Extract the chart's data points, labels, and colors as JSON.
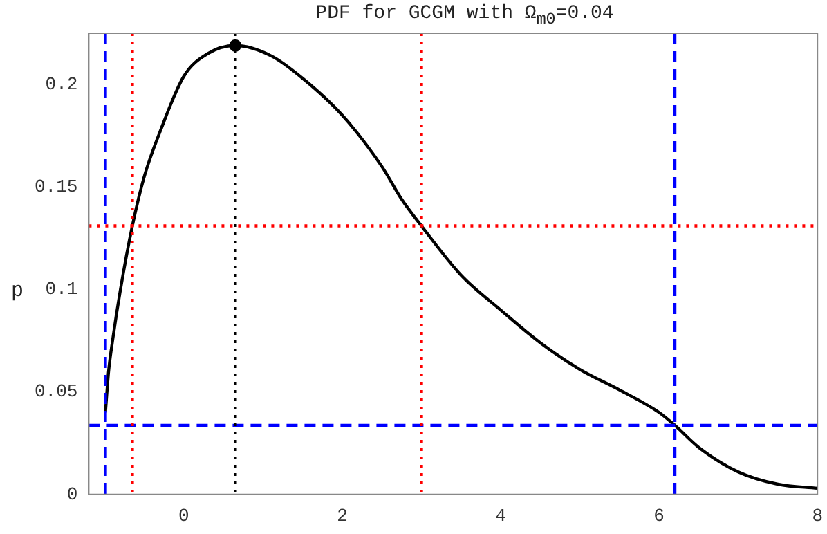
{
  "chart_data": {
    "type": "line",
    "title": "PDF for GCGM with Ω$_{m0}$=0.04",
    "ylabel": "p",
    "series": [
      {
        "type": "line",
        "color": "#000000",
        "marker": "none",
        "x": [
          -0.99,
          -0.95,
          -0.9,
          -0.8,
          -0.65,
          -0.5,
          -0.3,
          0,
          0.3,
          0.65,
          1.1,
          1.5,
          2,
          2.5,
          2.75,
          3,
          3.5,
          4,
          4.5,
          5,
          5.5,
          6,
          6.2,
          6.5,
          7,
          7.5,
          8
        ],
        "values": [
          0.04,
          0.06,
          0.075,
          0.1,
          0.131,
          0.155,
          0.177,
          0.204,
          0.215,
          0.219,
          0.214,
          0.203,
          0.185,
          0.16,
          0.144,
          0.131,
          0.107,
          0.09,
          0.074,
          0.061,
          0.051,
          0.04,
          0.0337,
          0.023,
          0.011,
          0.005,
          0.003
        ]
      },
      {
        "type": "scatter",
        "color": "#000000",
        "marker": "circle",
        "x": [
          0.65
        ],
        "values": [
          0.219
        ]
      }
    ],
    "xlim": [
      -1.2,
      8
    ],
    "xticks": [
      0,
      2,
      4,
      6,
      8
    ],
    "ylim": [
      0,
      0.225
    ],
    "yticks": [
      0,
      0.05,
      0.1,
      0.15,
      0.2
    ],
    "grid": false,
    "legend": false,
    "ref_lines": [
      {
        "axis": "x",
        "value": -0.99,
        "color": "#0000ff",
        "line_style": "dashed"
      },
      {
        "axis": "x",
        "value": 6.2,
        "color": "#0000ff",
        "line_style": "dashed"
      },
      {
        "axis": "y",
        "value": 0.0337,
        "color": "#0000ff",
        "line_style": "dashed"
      },
      {
        "axis": "x",
        "value": -0.65,
        "color": "#ff0000",
        "line_style": "dotted"
      },
      {
        "axis": "x",
        "value": 3,
        "color": "#ff0000",
        "line_style": "dotted"
      },
      {
        "axis": "y",
        "value": 0.131,
        "color": "#ff0000",
        "line_style": "dotted"
      },
      {
        "axis": "x",
        "value": 0.65,
        "color": "#000000",
        "line_style": "dotted"
      }
    ]
  }
}
